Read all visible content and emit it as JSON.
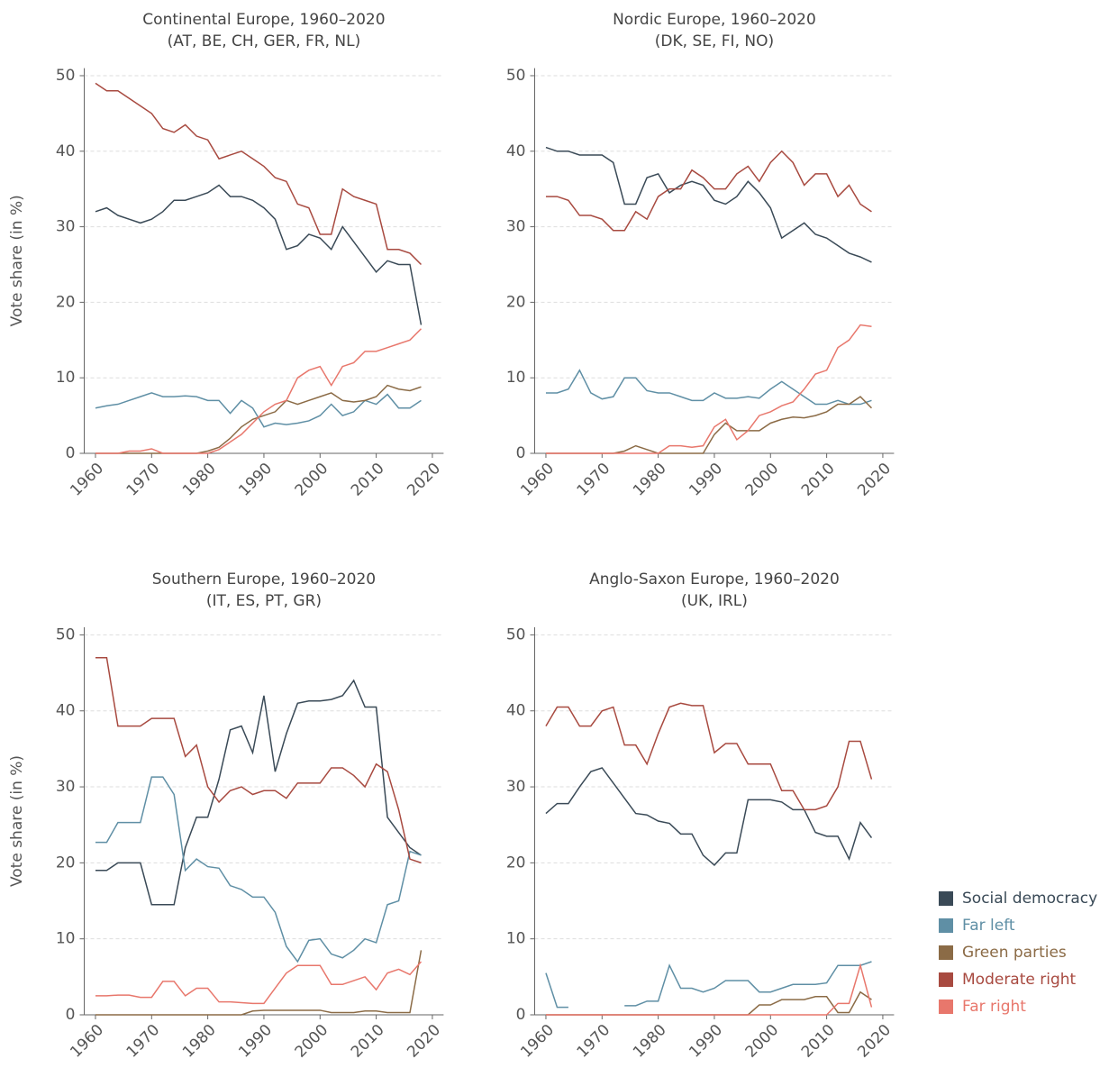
{
  "chart_data": [
    {
      "type": "line",
      "title": "Continental Europe, 1960–2020",
      "subtitle": "(AT, BE, CH, GER, FR, NL)",
      "ylabel": "Vote share (in %)",
      "x": [
        1960,
        1962,
        1964,
        1966,
        1968,
        1970,
        1972,
        1974,
        1976,
        1978,
        1980,
        1982,
        1984,
        1986,
        1988,
        1990,
        1992,
        1994,
        1996,
        1998,
        2000,
        2002,
        2004,
        2006,
        2008,
        2010,
        2012,
        2014,
        2016,
        2018
      ],
      "xlim": [
        1958,
        2022
      ],
      "xticks": [
        1960,
        1970,
        1980,
        1990,
        2000,
        2010,
        2020
      ],
      "ylim": [
        0,
        51
      ],
      "yticks": [
        0,
        10,
        20,
        30,
        40,
        50
      ],
      "grid": true,
      "series": [
        {
          "values": [
            32,
            32.5,
            31.5,
            31,
            30.5,
            31,
            32,
            33.5,
            33.5,
            34,
            34.5,
            35.5,
            34,
            34,
            33.5,
            32.5,
            31,
            27,
            27.5,
            29,
            28.5,
            27,
            30,
            28,
            26,
            24,
            25.5,
            25,
            25,
            17
          ]
        },
        {
          "values": [
            6,
            6.3,
            6.5,
            7,
            7.5,
            8,
            7.5,
            7.5,
            7.6,
            7.5,
            7,
            7,
            5.3,
            7,
            6,
            3.5,
            4,
            3.8,
            4,
            4.3,
            5,
            6.5,
            5,
            5.5,
            7,
            6.5,
            7.8,
            6,
            6,
            7
          ]
        },
        {
          "values": [
            0,
            0,
            0,
            0,
            0,
            0,
            0,
            0,
            0,
            0,
            0.3,
            0.8,
            2,
            3.5,
            4.5,
            5,
            5.5,
            7,
            6.5,
            7,
            7.5,
            8,
            7,
            6.8,
            7,
            7.5,
            9,
            8.5,
            8.3,
            8.8
          ]
        },
        {
          "values": [
            49,
            48,
            48,
            47,
            46,
            45,
            43,
            42.5,
            43.5,
            42,
            41.5,
            39,
            39.5,
            40,
            39,
            38,
            36.5,
            36,
            33,
            32.5,
            29,
            29,
            35,
            34,
            33.5,
            33,
            27,
            27,
            26.5,
            25
          ]
        },
        {
          "values": [
            0,
            0,
            0,
            0.3,
            0.3,
            0.6,
            0,
            0,
            0,
            0,
            0,
            0.5,
            1.5,
            2.5,
            4,
            5.5,
            6.5,
            7,
            10,
            11,
            11.5,
            9,
            11.5,
            12,
            13.5,
            13.5,
            14,
            14.5,
            15,
            16.5
          ]
        }
      ]
    },
    {
      "type": "line",
      "title": "Nordic Europe, 1960–2020",
      "subtitle": "(DK, SE, FI, NO)",
      "x": [
        1960,
        1962,
        1964,
        1966,
        1968,
        1970,
        1972,
        1974,
        1976,
        1978,
        1980,
        1982,
        1984,
        1986,
        1988,
        1990,
        1992,
        1994,
        1996,
        1998,
        2000,
        2002,
        2004,
        2006,
        2008,
        2010,
        2012,
        2014,
        2016,
        2018
      ],
      "xlim": [
        1958,
        2022
      ],
      "xticks": [
        1960,
        1970,
        1980,
        1990,
        2000,
        2010,
        2020
      ],
      "ylim": [
        0,
        51
      ],
      "yticks": [
        0,
        10,
        20,
        30,
        40,
        50
      ],
      "grid": true,
      "series": [
        {
          "values": [
            40.5,
            40,
            40,
            39.5,
            39.5,
            39.5,
            38.5,
            33,
            33,
            36.5,
            37,
            34.5,
            35.5,
            36,
            35.5,
            33.5,
            33,
            34,
            36,
            34.5,
            32.5,
            28.5,
            29.5,
            30.5,
            29,
            28.5,
            27.5,
            26.5,
            26,
            25.3
          ]
        },
        {
          "values": [
            8,
            8,
            8.5,
            11,
            8,
            7.2,
            7.5,
            10,
            10,
            8.3,
            8,
            8,
            7.5,
            7,
            7,
            8,
            7.3,
            7.3,
            7.5,
            7.3,
            8.5,
            9.5,
            8.5,
            7.5,
            6.5,
            6.5,
            7,
            6.5,
            6.5,
            7
          ]
        },
        {
          "values": [
            0,
            0,
            0,
            0,
            0,
            0,
            0,
            0.3,
            1,
            0.5,
            0,
            0,
            0,
            0,
            0,
            2.5,
            4,
            3,
            3,
            3,
            4,
            4.5,
            4.8,
            4.7,
            5,
            5.5,
            6.5,
            6.5,
            7.5,
            6
          ]
        },
        {
          "values": [
            34,
            34,
            33.5,
            31.5,
            31.5,
            31,
            29.5,
            29.5,
            32,
            31,
            34,
            35,
            35,
            37.5,
            36.5,
            35,
            35,
            37,
            38,
            36,
            38.5,
            40,
            38.5,
            35.5,
            37,
            37,
            34,
            35.5,
            33,
            32
          ]
        },
        {
          "values": [
            0,
            0,
            0,
            0,
            0,
            0,
            0,
            0,
            0,
            0,
            0,
            1,
            1,
            0.8,
            1,
            3.5,
            4.5,
            1.8,
            3,
            5,
            5.5,
            6.3,
            6.8,
            8.5,
            10.5,
            11,
            14,
            15,
            17,
            16.8
          ]
        }
      ]
    },
    {
      "type": "line",
      "title": "Southern Europe, 1960–2020",
      "subtitle": "(IT, ES, PT, GR)",
      "ylabel": "Vote share (in %)",
      "x": [
        1960,
        1962,
        1964,
        1966,
        1968,
        1970,
        1972,
        1974,
        1976,
        1978,
        1980,
        1982,
        1984,
        1986,
        1988,
        1990,
        1992,
        1994,
        1996,
        1998,
        2000,
        2002,
        2004,
        2006,
        2008,
        2010,
        2012,
        2014,
        2016,
        2018
      ],
      "xlim": [
        1958,
        2022
      ],
      "xticks": [
        1960,
        1970,
        1980,
        1990,
        2000,
        2010,
        2020
      ],
      "ylim": [
        0,
        51
      ],
      "yticks": [
        0,
        10,
        20,
        30,
        40,
        50
      ],
      "grid": true,
      "series": [
        {
          "values": [
            19,
            19,
            20,
            20,
            20,
            14.5,
            14.5,
            14.5,
            22,
            26,
            26,
            31,
            37.5,
            38,
            34.5,
            42,
            32,
            37,
            41,
            41.3,
            41.3,
            41.5,
            42,
            44,
            40.5,
            40.5,
            26,
            24,
            22,
            21
          ]
        },
        {
          "values": [
            22.7,
            22.7,
            25.3,
            25.3,
            25.3,
            31.3,
            31.3,
            29,
            19,
            20.5,
            19.5,
            19.3,
            17,
            16.5,
            15.5,
            15.5,
            13.5,
            9,
            7,
            9.8,
            10,
            8,
            7.5,
            8.5,
            10,
            9.5,
            14.5,
            15,
            21.5,
            21
          ]
        },
        {
          "values": [
            0,
            0,
            0,
            0,
            0,
            0,
            0,
            0,
            0,
            0,
            0,
            0,
            0,
            0,
            0.5,
            0.6,
            0.6,
            0.6,
            0.6,
            0.6,
            0.6,
            0.3,
            0.3,
            0.3,
            0.5,
            0.5,
            0.3,
            0.3,
            0.3,
            8.5
          ]
        },
        {
          "values": [
            47,
            47,
            38,
            38,
            38,
            39,
            39,
            39,
            34,
            35.5,
            30,
            28,
            29.5,
            30,
            29,
            29.5,
            29.5,
            28.5,
            30.5,
            30.5,
            30.5,
            32.5,
            32.5,
            31.5,
            30,
            33,
            32,
            27,
            20.5,
            20
          ]
        },
        {
          "values": [
            2.5,
            2.5,
            2.6,
            2.6,
            2.3,
            2.3,
            4.4,
            4.4,
            2.5,
            3.5,
            3.5,
            1.7,
            1.7,
            1.6,
            1.5,
            1.5,
            3.5,
            5.5,
            6.5,
            6.5,
            6.5,
            4,
            4,
            4.5,
            5,
            3.3,
            5.5,
            6,
            5.3,
            7
          ]
        }
      ]
    },
    {
      "type": "line",
      "title": "Anglo-Saxon Europe, 1960–2020",
      "subtitle": "(UK, IRL)",
      "x": [
        1960,
        1962,
        1964,
        1966,
        1968,
        1970,
        1972,
        1974,
        1976,
        1978,
        1980,
        1982,
        1984,
        1986,
        1988,
        1990,
        1992,
        1994,
        1996,
        1998,
        2000,
        2002,
        2004,
        2006,
        2008,
        2010,
        2012,
        2014,
        2016,
        2018
      ],
      "xlim": [
        1958,
        2022
      ],
      "xticks": [
        1960,
        1970,
        1980,
        1990,
        2000,
        2010,
        2020
      ],
      "ylim": [
        0,
        51
      ],
      "yticks": [
        0,
        10,
        20,
        30,
        40,
        50
      ],
      "grid": true,
      "series": [
        {
          "values": [
            26.5,
            27.8,
            27.8,
            30,
            32,
            32.5,
            30.5,
            28.5,
            26.5,
            26.3,
            25.5,
            25.2,
            23.8,
            23.8,
            21,
            19.7,
            21.3,
            21.3,
            28.3,
            28.3,
            28.3,
            28,
            27,
            27,
            24,
            23.5,
            23.5,
            20.5,
            25.3,
            23.3
          ]
        },
        {
          "values": [
            5.5,
            1,
            1,
            null,
            null,
            null,
            null,
            1.2,
            1.2,
            1.8,
            1.8,
            6.5,
            3.5,
            3.5,
            3,
            3.5,
            4.5,
            4.5,
            4.5,
            3,
            3,
            3.5,
            4,
            4,
            4,
            4.2,
            6.5,
            6.5,
            6.5,
            7
          ]
        },
        {
          "values": [
            0,
            0,
            0,
            0,
            0,
            0,
            0,
            0,
            0,
            0,
            0,
            0,
            0,
            0,
            0,
            0,
            0,
            0,
            0,
            1.3,
            1.3,
            2,
            2,
            2,
            2.4,
            2.4,
            0.3,
            0.3,
            3,
            2
          ]
        },
        {
          "values": [
            38,
            40.5,
            40.5,
            38,
            38,
            40,
            40.5,
            35.5,
            35.5,
            33,
            37,
            40.5,
            41,
            40.7,
            40.7,
            34.5,
            35.7,
            35.7,
            33,
            33,
            33,
            29.5,
            29.5,
            27,
            27,
            27.5,
            30,
            36,
            36,
            31
          ]
        },
        {
          "values": [
            0,
            0,
            0,
            0,
            0,
            0,
            0,
            0,
            0,
            0,
            0,
            0,
            0,
            0,
            0,
            0,
            0,
            0,
            0,
            0,
            0,
            0,
            0,
            0,
            0,
            0,
            1.5,
            1.5,
            6.5,
            1
          ]
        }
      ]
    }
  ],
  "legend": {
    "corner": "bottom-right",
    "entries": [
      {
        "name": "Social democracy",
        "color": "#3a4a57"
      },
      {
        "name": "Far left",
        "color": "#5f8fa5"
      },
      {
        "name": "Green parties",
        "color": "#8b6b46"
      },
      {
        "name": "Moderate right",
        "color": "#a84a40"
      },
      {
        "name": "Far right",
        "color": "#e8776c"
      }
    ]
  }
}
